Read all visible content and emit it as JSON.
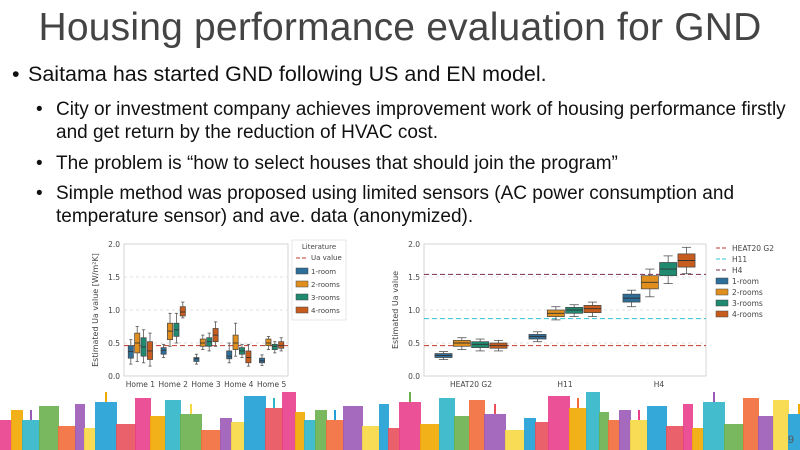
{
  "slide": {
    "title": "Housing performance evaluation for GND",
    "bullet_main": "Saitama has started GND following US and EN model.",
    "sub_bullets": [
      "City or investment company achieves improvement work of housing performance firstly and get return by the reduction of HVAC cost.",
      "The problem is “how to select houses that should join the program”",
      "Simple method was proposed using limited sensors (AC power consumption and temperature sensor) and ave. data (anonymized)."
    ],
    "bullet_glyph": "•",
    "page_number": "9"
  },
  "chart_data": [
    {
      "type": "box",
      "ylabel": "Estimated Ua value [W/m²K]",
      "ylim": [
        0.0,
        2.0
      ],
      "yticks": [
        "0.0",
        "0.5",
        "1.0",
        "1.5",
        "2.0"
      ],
      "categories": [
        "Home 1",
        "Home 2",
        "Home 3",
        "Home 4",
        "Home 5"
      ],
      "legend_title": "Literature",
      "legend_title_line2": "Ua value",
      "reference_line": {
        "color": "#c0392b",
        "value": 0.46
      },
      "series": [
        {
          "name": "1-room",
          "color": "#2e6f9a",
          "boxes": [
            [
              0.18,
              0.27,
              0.37,
              0.46,
              0.55
            ],
            [
              0.28,
              0.33,
              0.39,
              0.43,
              0.48
            ],
            [
              0.18,
              0.22,
              0.26,
              0.28,
              0.33
            ],
            [
              0.2,
              0.26,
              0.3,
              0.38,
              0.5
            ],
            [
              0.16,
              0.2,
              0.23,
              0.27,
              0.32
            ]
          ]
        },
        {
          "name": "2-rooms",
          "color": "#e08f1f",
          "boxes": [
            [
              0.22,
              0.35,
              0.5,
              0.65,
              0.75
            ],
            [
              0.45,
              0.55,
              0.68,
              0.8,
              0.95
            ],
            [
              0.4,
              0.45,
              0.5,
              0.56,
              0.62
            ],
            [
              0.3,
              0.4,
              0.5,
              0.62,
              0.8
            ],
            [
              0.4,
              0.46,
              0.5,
              0.56,
              0.6
            ]
          ]
        },
        {
          "name": "3-rooms",
          "color": "#1f8a70",
          "boxes": [
            [
              0.2,
              0.3,
              0.44,
              0.58,
              0.7
            ],
            [
              0.5,
              0.6,
              0.7,
              0.8,
              0.95
            ],
            [
              0.38,
              0.45,
              0.52,
              0.58,
              0.65
            ],
            [
              0.28,
              0.33,
              0.38,
              0.43,
              0.48
            ],
            [
              0.35,
              0.4,
              0.45,
              0.48,
              0.52
            ]
          ]
        },
        {
          "name": "4-rooms",
          "color": "#c65d1e",
          "boxes": [
            [
              0.15,
              0.25,
              0.38,
              0.52,
              0.65
            ],
            [
              0.88,
              0.91,
              0.97,
              1.05,
              1.12
            ],
            [
              0.45,
              0.52,
              0.62,
              0.72,
              0.82
            ],
            [
              0.15,
              0.2,
              0.28,
              0.38,
              0.48
            ],
            [
              0.38,
              0.42,
              0.46,
              0.52,
              0.58
            ]
          ]
        }
      ]
    },
    {
      "type": "box",
      "ylabel": "Estimated Ua value",
      "ylim": [
        0.0,
        2.0
      ],
      "yticks": [
        "0.0",
        "0.5",
        "1.0",
        "1.5",
        "2.0"
      ],
      "categories": [
        "HEAT20 G2",
        "H11",
        "H4"
      ],
      "reference_lines": [
        {
          "name": "HEAT20 G2",
          "color": "#c0392b",
          "value": 0.46
        },
        {
          "name": "H11",
          "color": "#2cc3d6",
          "value": 0.87
        },
        {
          "name": "H4",
          "color": "#7b2d52",
          "value": 1.54
        }
      ],
      "series": [
        {
          "name": "1-room",
          "color": "#2e6f9a",
          "boxes": [
            [
              0.25,
              0.28,
              0.31,
              0.34,
              0.37
            ],
            [
              0.52,
              0.56,
              0.6,
              0.63,
              0.67
            ],
            [
              1.05,
              1.12,
              1.18,
              1.24,
              1.3
            ]
          ]
        },
        {
          "name": "2-rooms",
          "color": "#e08f1f",
          "boxes": [
            [
              0.4,
              0.45,
              0.5,
              0.54,
              0.58
            ],
            [
              0.85,
              0.9,
              0.95,
              1.0,
              1.05
            ],
            [
              1.2,
              1.32,
              1.42,
              1.52,
              1.62
            ]
          ]
        },
        {
          "name": "3-rooms",
          "color": "#1f8a70",
          "boxes": [
            [
              0.38,
              0.43,
              0.48,
              0.52,
              0.56
            ],
            [
              0.9,
              0.95,
              1.0,
              1.04,
              1.08
            ],
            [
              1.4,
              1.52,
              1.62,
              1.72,
              1.82
            ]
          ]
        },
        {
          "name": "4-rooms",
          "color": "#c65d1e",
          "boxes": [
            [
              0.38,
              0.42,
              0.46,
              0.5,
              0.54
            ],
            [
              0.9,
              0.96,
              1.02,
              1.07,
              1.12
            ],
            [
              1.55,
              1.65,
              1.75,
              1.85,
              1.95
            ]
          ]
        }
      ]
    }
  ],
  "skyline_colors": [
    "#e83e8c",
    "#f2a900",
    "#2fb5c8",
    "#6ab04c",
    "#f26b38",
    "#9b59b6",
    "#f7d842",
    "#1f9fd6",
    "#e8505b"
  ]
}
